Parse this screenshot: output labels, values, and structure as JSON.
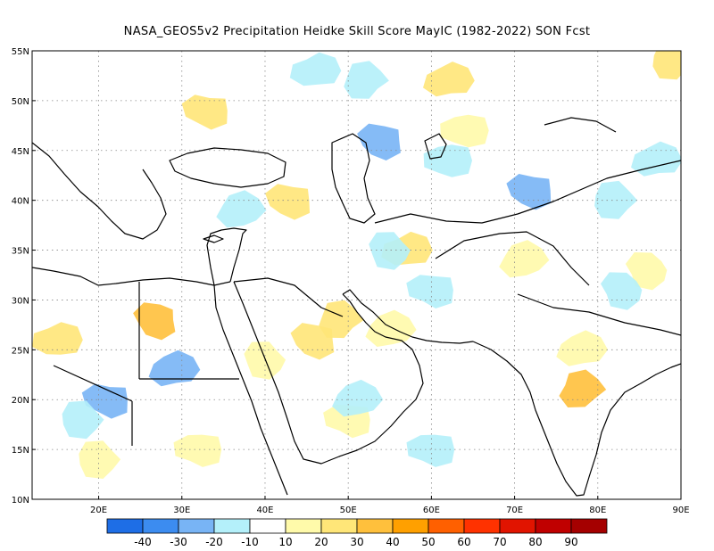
{
  "title": "NASA_GEOS5v2  Precipitation Heidke Skill Score MayIC (1982-2022) SON Fcst",
  "axes": {
    "lon_labels": [
      "20E",
      "30E",
      "40E",
      "50E",
      "60E",
      "70E",
      "80E",
      "90E"
    ],
    "lat_labels": [
      "55N",
      "50N",
      "45N",
      "40N",
      "35N",
      "30N",
      "25N",
      "20N",
      "15N",
      "10N"
    ],
    "lon_range": [
      12,
      90
    ],
    "lat_range": [
      10,
      55
    ]
  },
  "colorbar": {
    "labels": [
      "-40",
      "-30",
      "-20",
      "-10",
      "10",
      "20",
      "30",
      "40",
      "50",
      "60",
      "70",
      "80",
      "90"
    ],
    "colors": [
      "#1e6ee6",
      "#3c8cf0",
      "#78b4f5",
      "#b4f0fa",
      "#ffffff",
      "#fffaaa",
      "#ffe678",
      "#ffc03c",
      "#ffa000",
      "#ff6000",
      "#ff3200",
      "#e11400",
      "#c00000",
      "#a50000"
    ]
  },
  "field": {
    "blue_patches": [
      {
        "lon": 54,
        "lat": 46,
        "level": "-20"
      },
      {
        "lon": 52,
        "lat": 52,
        "level": "-10"
      },
      {
        "lon": 46,
        "lat": 53,
        "level": "-10"
      },
      {
        "lon": 72,
        "lat": 41,
        "level": "-20"
      },
      {
        "lon": 82,
        "lat": 40,
        "level": "-10"
      },
      {
        "lon": 87,
        "lat": 44,
        "level": "-10"
      },
      {
        "lon": 21,
        "lat": 20,
        "level": "-20"
      },
      {
        "lon": 18,
        "lat": 18,
        "level": "-10"
      },
      {
        "lon": 29,
        "lat": 23,
        "level": "-20"
      },
      {
        "lon": 60,
        "lat": 31,
        "level": "-10"
      },
      {
        "lon": 55,
        "lat": 35,
        "level": "-10"
      },
      {
        "lon": 51,
        "lat": 20,
        "level": "-10"
      },
      {
        "lon": 60,
        "lat": 15,
        "level": "-10"
      },
      {
        "lon": 83,
        "lat": 31,
        "level": "-10"
      },
      {
        "lon": 37,
        "lat": 39,
        "level": "-10"
      },
      {
        "lon": 62,
        "lat": 44,
        "level": "-10"
      }
    ],
    "warm_patches": [
      {
        "lon": 27,
        "lat": 28,
        "level": "30"
      },
      {
        "lon": 78,
        "lat": 21,
        "level": "30"
      },
      {
        "lon": 15,
        "lat": 26,
        "level": "20"
      },
      {
        "lon": 46,
        "lat": 26,
        "level": "20"
      },
      {
        "lon": 49,
        "lat": 28,
        "level": "20"
      },
      {
        "lon": 57,
        "lat": 35,
        "level": "20"
      },
      {
        "lon": 43,
        "lat": 40,
        "level": "20"
      },
      {
        "lon": 89,
        "lat": 54,
        "level": "20"
      },
      {
        "lon": 62,
        "lat": 52,
        "level": "20"
      },
      {
        "lon": 33,
        "lat": 49,
        "level": "20"
      },
      {
        "lon": 20,
        "lat": 14,
        "level": "10"
      },
      {
        "lon": 78,
        "lat": 25,
        "level": "10"
      },
      {
        "lon": 50,
        "lat": 18,
        "level": "10"
      },
      {
        "lon": 40,
        "lat": 24,
        "level": "10"
      },
      {
        "lon": 55,
        "lat": 27,
        "level": "10"
      },
      {
        "lon": 32,
        "lat": 15,
        "level": "10"
      },
      {
        "lon": 86,
        "lat": 33,
        "level": "10"
      },
      {
        "lon": 71,
        "lat": 34,
        "level": "10"
      },
      {
        "lon": 64,
        "lat": 47,
        "level": "10"
      }
    ]
  }
}
